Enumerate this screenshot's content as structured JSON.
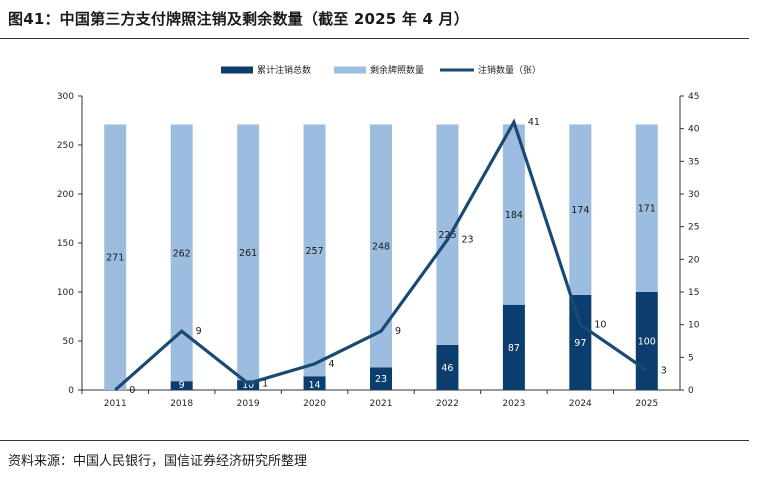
{
  "title": "图41：中国第三方支付牌照注销及剩余数量（截至 2025 年 4 月）",
  "source": "资料来源：中国人民银行，国信证券经济研究所整理",
  "colors": {
    "cancelled_total": "#0b3d6e",
    "remaining": "#9dbde0",
    "cancelled_line": "#1a4a72"
  },
  "chart_data": {
    "type": "bar",
    "categories": [
      "2011",
      "2018",
      "2019",
      "2020",
      "2021",
      "2022",
      "2023",
      "2024",
      "2025"
    ],
    "series": [
      {
        "name": "累计注销总数",
        "type": "bar",
        "axis": "left",
        "values": [
          0,
          9,
          10,
          14,
          23,
          46,
          87,
          97,
          100
        ]
      },
      {
        "name": "剩余牌照数量",
        "type": "bar",
        "axis": "left",
        "values": [
          271,
          262,
          261,
          257,
          248,
          225,
          184,
          174,
          171
        ]
      },
      {
        "name": "注销数量（张）",
        "type": "line",
        "axis": "right",
        "values": [
          0,
          9,
          1,
          4,
          9,
          23,
          41,
          10,
          3
        ]
      }
    ],
    "ylim_left": [
      0,
      300
    ],
    "yticks_left": [
      0,
      50,
      100,
      150,
      200,
      250,
      300
    ],
    "ylim_right": [
      0,
      45
    ],
    "yticks_right": [
      0,
      5,
      10,
      15,
      20,
      25,
      30,
      35,
      40,
      45
    ],
    "stacked": true,
    "grid": false,
    "legend_position": "top"
  }
}
